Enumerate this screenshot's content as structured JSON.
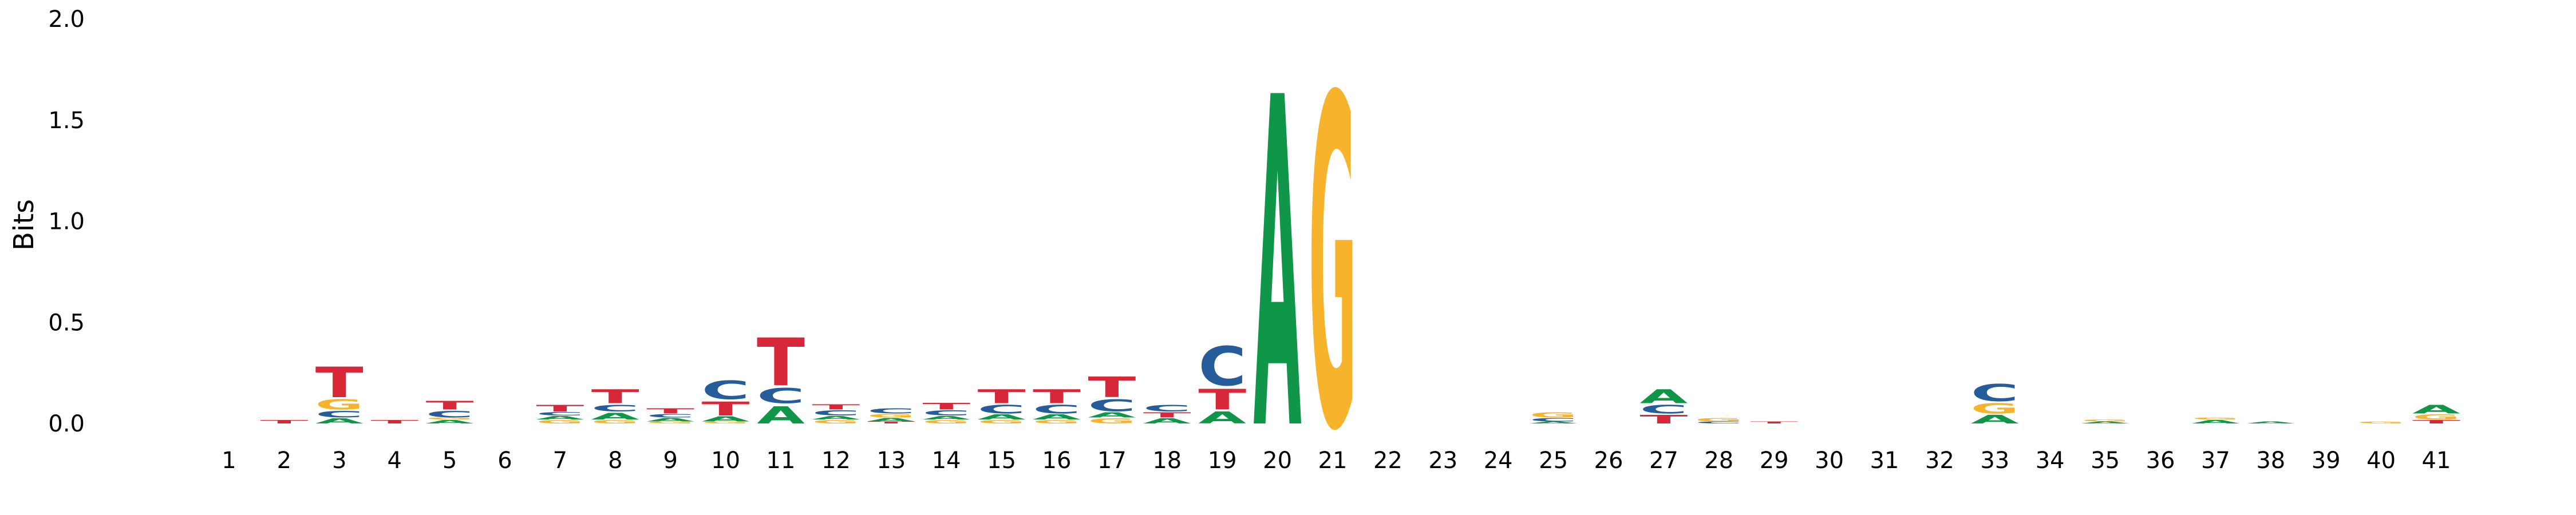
{
  "chart_data": {
    "type": "sequence-logo",
    "ylabel": "Bits",
    "ylim": [
      0,
      2.0
    ],
    "yticks": [
      "0.0",
      "0.5",
      "1.0",
      "1.5",
      "2.0"
    ],
    "positions": [
      "1",
      "2",
      "3",
      "4",
      "5",
      "6",
      "7",
      "8",
      "9",
      "10",
      "11",
      "12",
      "13",
      "14",
      "15",
      "16",
      "17",
      "18",
      "19",
      "20",
      "21",
      "22",
      "23",
      "24",
      "25",
      "26",
      "27",
      "28",
      "29",
      "30",
      "31",
      "32",
      "33",
      "34",
      "35",
      "36",
      "37",
      "38",
      "39",
      "40",
      "41"
    ],
    "colors": {
      "A": "#109648",
      "C": "#255C99",
      "G": "#F7B32B",
      "T": "#D62839"
    },
    "columns": [
      {
        "pos": "1",
        "letters": []
      },
      {
        "pos": "2",
        "letters": [
          {
            "l": "T",
            "h": 0.02
          }
        ]
      },
      {
        "pos": "3",
        "letters": [
          {
            "l": "A",
            "h": 0.03
          },
          {
            "l": "C",
            "h": 0.04
          },
          {
            "l": "G",
            "h": 0.06
          },
          {
            "l": "T",
            "h": 0.18
          }
        ]
      },
      {
        "pos": "4",
        "letters": [
          {
            "l": "T",
            "h": 0.02
          }
        ]
      },
      {
        "pos": "5",
        "letters": [
          {
            "l": "A",
            "h": 0.02
          },
          {
            "l": "G",
            "h": 0.01
          },
          {
            "l": "C",
            "h": 0.04
          },
          {
            "l": "T",
            "h": 0.05
          }
        ]
      },
      {
        "pos": "6",
        "letters": []
      },
      {
        "pos": "7",
        "letters": [
          {
            "l": "G",
            "h": 0.02
          },
          {
            "l": "A",
            "h": 0.02
          },
          {
            "l": "C",
            "h": 0.02
          },
          {
            "l": "T",
            "h": 0.04
          }
        ]
      },
      {
        "pos": "8",
        "letters": [
          {
            "l": "G",
            "h": 0.02
          },
          {
            "l": "A",
            "h": 0.04
          },
          {
            "l": "C",
            "h": 0.04
          },
          {
            "l": "T",
            "h": 0.08
          }
        ]
      },
      {
        "pos": "9",
        "letters": [
          {
            "l": "G",
            "h": 0.01
          },
          {
            "l": "A",
            "h": 0.02
          },
          {
            "l": "C",
            "h": 0.02
          },
          {
            "l": "T",
            "h": 0.03
          }
        ]
      },
      {
        "pos": "10",
        "letters": [
          {
            "l": "G",
            "h": 0.01
          },
          {
            "l": "A",
            "h": 0.03
          },
          {
            "l": "T",
            "h": 0.08
          },
          {
            "l": "C",
            "h": 0.11
          }
        ]
      },
      {
        "pos": "11",
        "letters": [
          {
            "l": "A",
            "h": 0.1
          },
          {
            "l": "C",
            "h": 0.09
          },
          {
            "l": "T",
            "h": 0.28
          }
        ]
      },
      {
        "pos": "12",
        "letters": [
          {
            "l": "G",
            "h": 0.02
          },
          {
            "l": "A",
            "h": 0.02
          },
          {
            "l": "C",
            "h": 0.03
          },
          {
            "l": "T",
            "h": 0.03
          }
        ]
      },
      {
        "pos": "13",
        "letters": [
          {
            "l": "T",
            "h": 0.01
          },
          {
            "l": "A",
            "h": 0.02
          },
          {
            "l": "G",
            "h": 0.02
          },
          {
            "l": "C",
            "h": 0.03
          }
        ]
      },
      {
        "pos": "14",
        "letters": [
          {
            "l": "G",
            "h": 0.02
          },
          {
            "l": "A",
            "h": 0.02
          },
          {
            "l": "C",
            "h": 0.03
          },
          {
            "l": "T",
            "h": 0.04
          }
        ]
      },
      {
        "pos": "15",
        "letters": [
          {
            "l": "G",
            "h": 0.02
          },
          {
            "l": "A",
            "h": 0.03
          },
          {
            "l": "C",
            "h": 0.05
          },
          {
            "l": "T",
            "h": 0.08
          }
        ]
      },
      {
        "pos": "16",
        "letters": [
          {
            "l": "G",
            "h": 0.02
          },
          {
            "l": "A",
            "h": 0.03
          },
          {
            "l": "C",
            "h": 0.05
          },
          {
            "l": "T",
            "h": 0.08
          }
        ]
      },
      {
        "pos": "17",
        "letters": [
          {
            "l": "G",
            "h": 0.03
          },
          {
            "l": "A",
            "h": 0.03
          },
          {
            "l": "C",
            "h": 0.07
          },
          {
            "l": "T",
            "h": 0.12
          }
        ]
      },
      {
        "pos": "18",
        "letters": [
          {
            "l": "A",
            "h": 0.03
          },
          {
            "l": "T",
            "h": 0.03
          },
          {
            "l": "C",
            "h": 0.04
          }
        ]
      },
      {
        "pos": "19",
        "letters": [
          {
            "l": "A",
            "h": 0.07
          },
          {
            "l": "T",
            "h": 0.12
          },
          {
            "l": "C",
            "h": 0.23
          }
        ]
      },
      {
        "pos": "20",
        "letters": [
          {
            "l": "A",
            "h": 1.94
          }
        ]
      },
      {
        "pos": "21",
        "letters": [
          {
            "l": "G",
            "h": 1.94
          }
        ]
      },
      {
        "pos": "22",
        "letters": []
      },
      {
        "pos": "23",
        "letters": []
      },
      {
        "pos": "24",
        "letters": []
      },
      {
        "pos": "25",
        "letters": [
          {
            "l": "A",
            "h": 0.01
          },
          {
            "l": "C",
            "h": 0.02
          },
          {
            "l": "G",
            "h": 0.03
          }
        ]
      },
      {
        "pos": "26",
        "letters": []
      },
      {
        "pos": "27",
        "letters": [
          {
            "l": "T",
            "h": 0.05
          },
          {
            "l": "C",
            "h": 0.05
          },
          {
            "l": "A",
            "h": 0.08
          }
        ]
      },
      {
        "pos": "28",
        "letters": [
          {
            "l": "C",
            "h": 0.01
          },
          {
            "l": "G",
            "h": 0.02
          }
        ]
      },
      {
        "pos": "29",
        "letters": [
          {
            "l": "T",
            "h": 0.01
          }
        ]
      },
      {
        "pos": "30",
        "letters": []
      },
      {
        "pos": "31",
        "letters": []
      },
      {
        "pos": "32",
        "letters": []
      },
      {
        "pos": "33",
        "letters": [
          {
            "l": "A",
            "h": 0.05
          },
          {
            "l": "G",
            "h": 0.06
          },
          {
            "l": "C",
            "h": 0.1
          }
        ]
      },
      {
        "pos": "34",
        "letters": []
      },
      {
        "pos": "35",
        "letters": [
          {
            "l": "A",
            "h": 0.01
          },
          {
            "l": "G",
            "h": 0.01
          }
        ]
      },
      {
        "pos": "36",
        "letters": []
      },
      {
        "pos": "37",
        "letters": [
          {
            "l": "A",
            "h": 0.02
          },
          {
            "l": "G",
            "h": 0.01
          }
        ]
      },
      {
        "pos": "38",
        "letters": [
          {
            "l": "A",
            "h": 0.01
          }
        ]
      },
      {
        "pos": "39",
        "letters": []
      },
      {
        "pos": "40",
        "letters": [
          {
            "l": "G",
            "h": 0.01
          }
        ]
      },
      {
        "pos": "41",
        "letters": [
          {
            "l": "T",
            "h": 0.02
          },
          {
            "l": "G",
            "h": 0.03
          },
          {
            "l": "A",
            "h": 0.05
          }
        ]
      }
    ]
  }
}
